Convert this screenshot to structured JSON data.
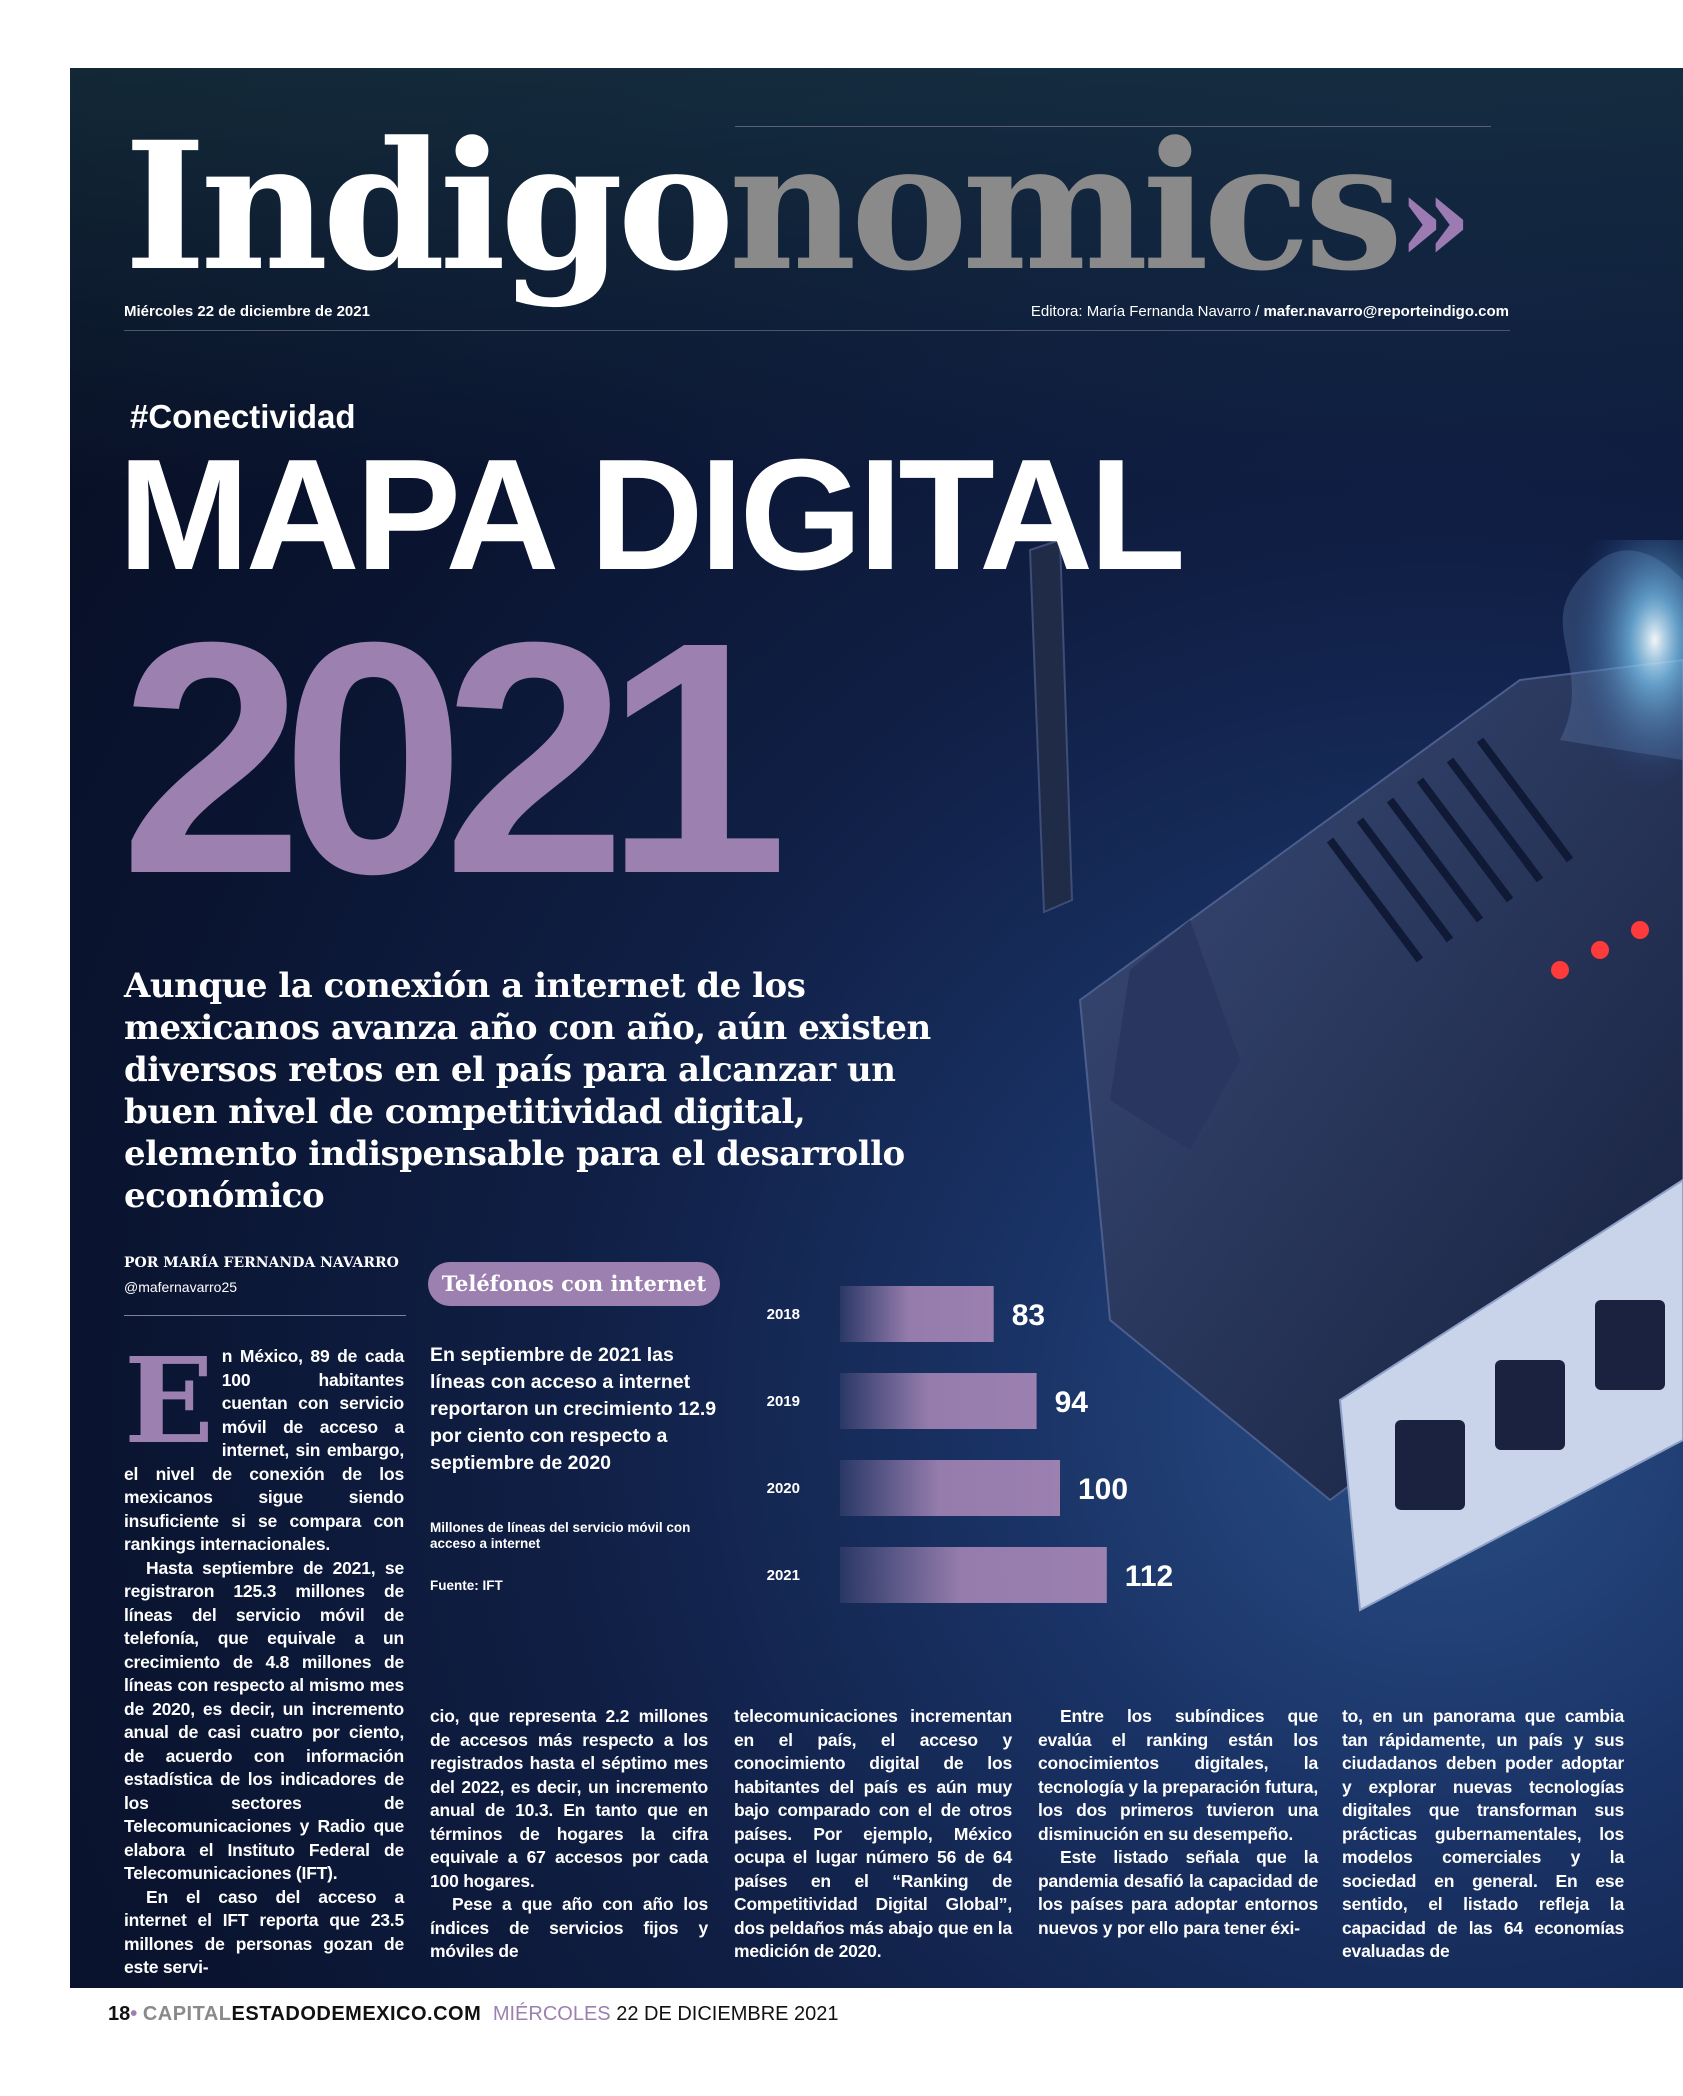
{
  "masthead": {
    "part1": "Indigo",
    "part2": "nomics",
    "chevrons": "»"
  },
  "header": {
    "date": "Miércoles 22 de diciembre de 2021",
    "editor_prefix": "Editora: María Fernanda Navarro / ",
    "editor_email": "mafer.navarro@reporteindigo.com"
  },
  "article": {
    "hashtag": "#Conectividad",
    "headline": "MAPA DIGITAL",
    "year": "2021",
    "dek": "Aunque la conexión a internet de los mexicanos avanza año con año, aún existen diversos retos en el país para alcanzar un buen nivel de competitividad digital, elemento indispensable para el desarrollo económico",
    "byline": "POR MARÍA FERNANDA NAVARRO",
    "handle": "@mafernavarro25",
    "dropcap": "E",
    "col1_p1": "n México, 89 de cada 100 habitantes cuentan con servicio móvil de acceso a internet, sin embargo, el nivel de conexión de los mexicanos sigue siendo insuficiente si se compara con rankings internacionales.",
    "col1_p2": "Hasta septiembre de 2021, se registraron 125.3 millones de líneas del servicio móvil de telefonía, que equivale a un crecimiento de 4.8 millones de líneas con respecto al mismo mes de 2020, es decir, un incremento anual de casi cuatro por ciento, de acuerdo con información estadística de los indicadores de los sectores de Telecomunicaciones y Radio que elabora el Instituto Federal de Telecomunicaciones (IFT).",
    "col1_p3": "En el caso del acceso a internet el IFT reporta que 23.5 millones de personas gozan de este servi-",
    "col2_p1": "cio, que representa 2.2 millones de accesos más respecto a los registrados hasta el séptimo mes del 2022, es decir, un incremento anual de 10.3. En tanto que en términos de hogares la cifra equivale a 67 accesos por cada 100 hogares.",
    "col2_p2": "Pese a que año con año los índices de servicios fijos y móviles de",
    "col3_p1": "telecomunicaciones incrementan en el país, el acceso y conocimiento digital de los habitantes del país es aún muy bajo comparado con el de otros países. Por ejemplo, México ocupa el lugar número 56 de 64 países en el “Ranking de Competitividad Digital Global”, dos peldaños más abajo que en la medición de 2020.",
    "col4_p1": "Entre los subíndices que evalúa el ranking están los conocimientos digitales, la tecnología y la preparación futura, los dos primeros tuvieron una disminución en su desempeño.",
    "col4_p2": "Este listado señala que la pandemia desafió la capacidad de los países para adoptar entornos nuevos y por ello para tener éxi-",
    "col5_p1": "to, en un panorama que cambia tan rápidamente, un país y sus ciudadanos deben poder adoptar y explorar nuevas tecnologías digitales que transforman sus prácticas gubernamentales, los modelos comerciales y la sociedad en general. En ese sentido, el listado refleja la capacidad de las 64 economías evaluadas de"
  },
  "infographic": {
    "tag": "Teléfonos con internet",
    "text": "En septiembre de 2021 las líneas con acceso a internet reportaron un crecimiento 12.9 por ciento con respecto a septiembre de 2020",
    "note": "Millones de líneas del servicio móvil con acceso a internet",
    "source": "Fuente: IFT"
  },
  "chart_data": {
    "type": "bar",
    "orientation": "horizontal",
    "categories": [
      "2018",
      "2019",
      "2020",
      "2021"
    ],
    "values": [
      83,
      94,
      100,
      112
    ],
    "title": "Teléfonos con internet",
    "note": "Millones de líneas del servicio móvil con acceso a internet",
    "source": "Fuente: IFT",
    "bar_color": "#9b80b0"
  },
  "footer": {
    "page": "18",
    "bullet": "•",
    "capital": "CAPITAL",
    "site": "ESTADODEMEXICO.COM",
    "weekday": "MIÉRCOLES",
    "date": "22 DE DICIEMBRE 2021"
  },
  "colors": {
    "accent": "#9b80b0",
    "background": "#0b1633",
    "text": "#ffffff"
  }
}
